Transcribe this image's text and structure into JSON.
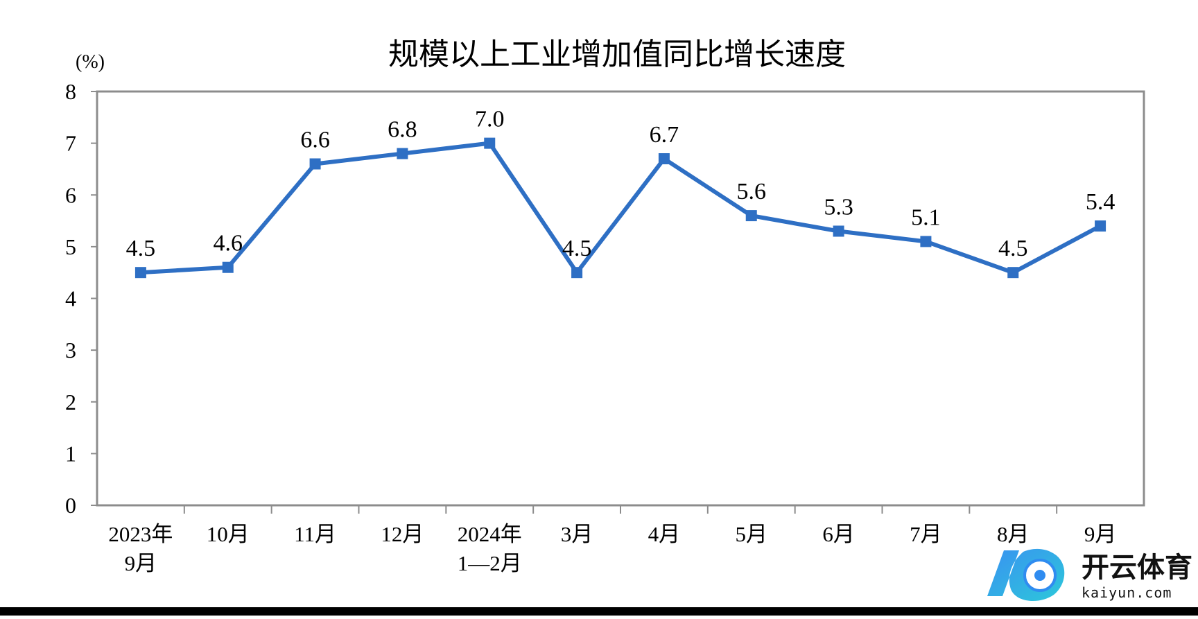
{
  "chart_data": {
    "type": "line",
    "title": "规模以上工业增加值同比增长速度",
    "ylabel": "(%)",
    "xlabel": "",
    "ylim": [
      0,
      8
    ],
    "yticks": [
      "0",
      "1",
      "2",
      "3",
      "4",
      "5",
      "6",
      "7",
      "8"
    ],
    "grid": false,
    "categories": [
      [
        "2023年",
        "9月"
      ],
      [
        "10月"
      ],
      [
        "11月"
      ],
      [
        "12月"
      ],
      [
        "2024年",
        "1—2月"
      ],
      [
        "3月"
      ],
      [
        "4月"
      ],
      [
        "5月"
      ],
      [
        "6月"
      ],
      [
        "7月"
      ],
      [
        "8月"
      ],
      [
        "9月"
      ]
    ],
    "series": [
      {
        "values": [
          4.5,
          4.6,
          6.6,
          6.8,
          7.0,
          4.5,
          6.7,
          5.6,
          5.3,
          5.1,
          4.5,
          5.4
        ],
        "labels": [
          "4.5",
          "4.6",
          "6.6",
          "6.8",
          "7.0",
          "4.5",
          "6.7",
          "5.6",
          "5.3",
          "5.1",
          "4.5",
          "5.4"
        ],
        "color": "#2e6fc4"
      }
    ]
  },
  "watermark": {
    "cn": "开云体育",
    "en": "kaiyun.com",
    "colors": [
      "#2f8cf0",
      "#21c5d8"
    ]
  }
}
